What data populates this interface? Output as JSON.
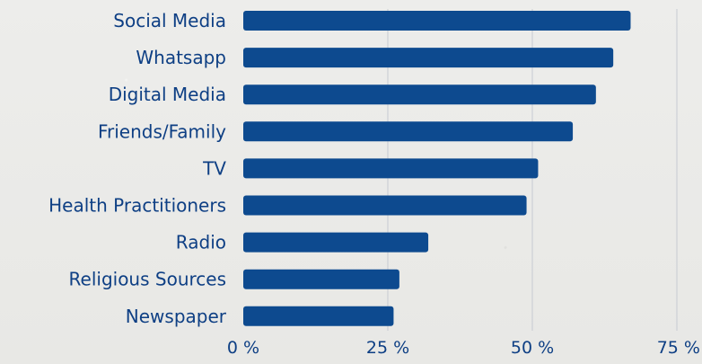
{
  "chart_data": {
    "type": "bar",
    "orientation": "horizontal",
    "categories": [
      "Social Media",
      "Whatsapp",
      "Digital Media",
      "Friends/Family",
      "TV",
      "Health Practitioners",
      "Radio",
      "Religious Sources",
      "Newspaper"
    ],
    "values": [
      67,
      64,
      61,
      57,
      51,
      49,
      32,
      27,
      26
    ],
    "x_ticks": [
      "0 %",
      "25 %",
      "50 %",
      "75 %"
    ],
    "xlim": [
      0,
      75
    ],
    "grid": true,
    "colors": {
      "bar": "#0d4a8f",
      "text": "#0e3f84",
      "grid": "#c6cad2",
      "background": "#ebebe9"
    }
  }
}
